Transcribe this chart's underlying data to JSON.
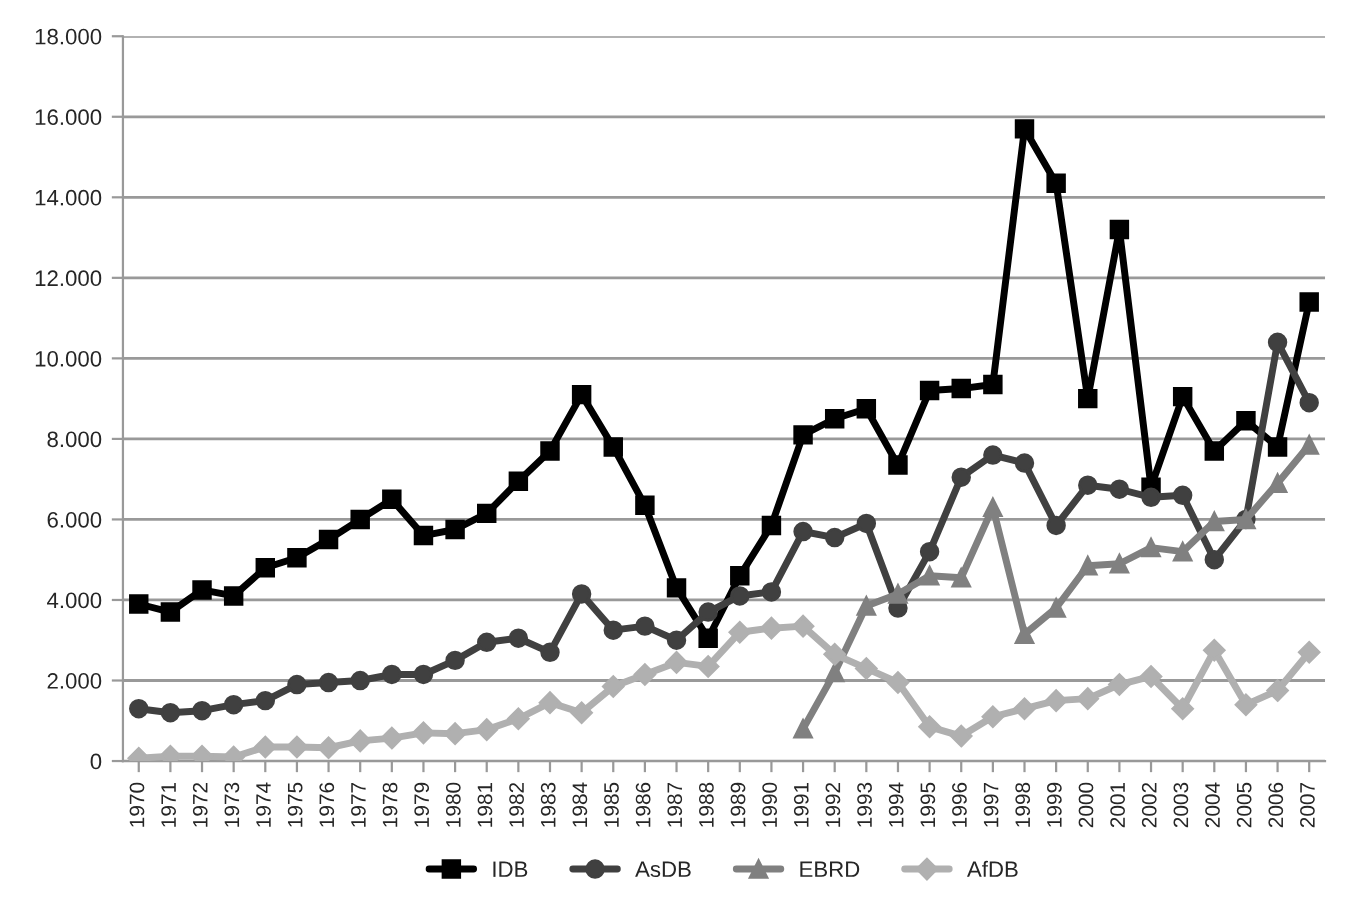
{
  "chart_data": {
    "type": "line",
    "categories": [
      "1970",
      "1971",
      "1972",
      "1973",
      "1974",
      "1975",
      "1976",
      "1977",
      "1978",
      "1979",
      "1980",
      "1981",
      "1982",
      "1983",
      "1984",
      "1985",
      "1986",
      "1987",
      "1988",
      "1989",
      "1990",
      "1991",
      "1992",
      "1993",
      "1994",
      "1995",
      "1996",
      "1997",
      "1998",
      "1999",
      "2000",
      "2001",
      "2002",
      "2003",
      "2004",
      "2005",
      "2006",
      "2007"
    ],
    "series": [
      {
        "name": "IDB",
        "color": "#000000",
        "marker": "square",
        "values": [
          3900,
          3700,
          4250,
          4100,
          4800,
          5050,
          5500,
          6000,
          6500,
          5600,
          5750,
          6150,
          6950,
          7700,
          9100,
          7800,
          6350,
          4300,
          3050,
          4600,
          5850,
          8100,
          8500,
          8750,
          7350,
          9200,
          9250,
          9350,
          15700,
          14350,
          9000,
          13200,
          6800,
          9050,
          7700,
          8450,
          7800,
          11400
        ]
      },
      {
        "name": "AsDB",
        "color": "#404040",
        "marker": "circle",
        "values": [
          1300,
          1200,
          1250,
          1400,
          1500,
          1900,
          1950,
          2000,
          2150,
          2150,
          2500,
          2950,
          3050,
          2700,
          4150,
          3250,
          3350,
          3000,
          3700,
          4100,
          4200,
          5700,
          5550,
          5900,
          3800,
          5200,
          7050,
          7600,
          7400,
          5850,
          6850,
          6750,
          6550,
          6600,
          5000,
          6000,
          10400,
          8900
        ]
      },
      {
        "name": "EBRD",
        "color": "#808080",
        "marker": "triangle",
        "values": [
          null,
          null,
          null,
          null,
          null,
          null,
          null,
          null,
          null,
          null,
          null,
          null,
          null,
          null,
          null,
          null,
          null,
          null,
          null,
          null,
          null,
          800,
          2200,
          3850,
          4150,
          4600,
          4550,
          6300,
          3150,
          3800,
          4850,
          4900,
          5300,
          5200,
          5950,
          6000,
          6900,
          7850
        ]
      },
      {
        "name": "AfDB",
        "color": "#b0b0b0",
        "marker": "diamond",
        "values": [
          70,
          120,
          120,
          100,
          350,
          350,
          330,
          500,
          570,
          700,
          680,
          780,
          1050,
          1450,
          1200,
          1850,
          2150,
          2450,
          2350,
          3200,
          3300,
          3350,
          2650,
          2300,
          1950,
          850,
          620,
          1100,
          1300,
          1500,
          1550,
          1900,
          2100,
          1300,
          2750,
          1400,
          1750,
          2700
        ]
      }
    ],
    "ylim": [
      0,
      18000
    ],
    "yticks": [
      {
        "value": 0,
        "label": "0"
      },
      {
        "value": 2000,
        "label": "2.000"
      },
      {
        "value": 4000,
        "label": "4.000"
      },
      {
        "value": 6000,
        "label": "6.000"
      },
      {
        "value": 8000,
        "label": "8.000"
      },
      {
        "value": 10000,
        "label": "10.000"
      },
      {
        "value": 12000,
        "label": "12.000"
      },
      {
        "value": 14000,
        "label": "14.000"
      },
      {
        "value": 16000,
        "label": "16.000"
      },
      {
        "value": 18000,
        "label": "18.000"
      }
    ],
    "grid": "y",
    "legend": "bottom",
    "line_style": "solid"
  }
}
